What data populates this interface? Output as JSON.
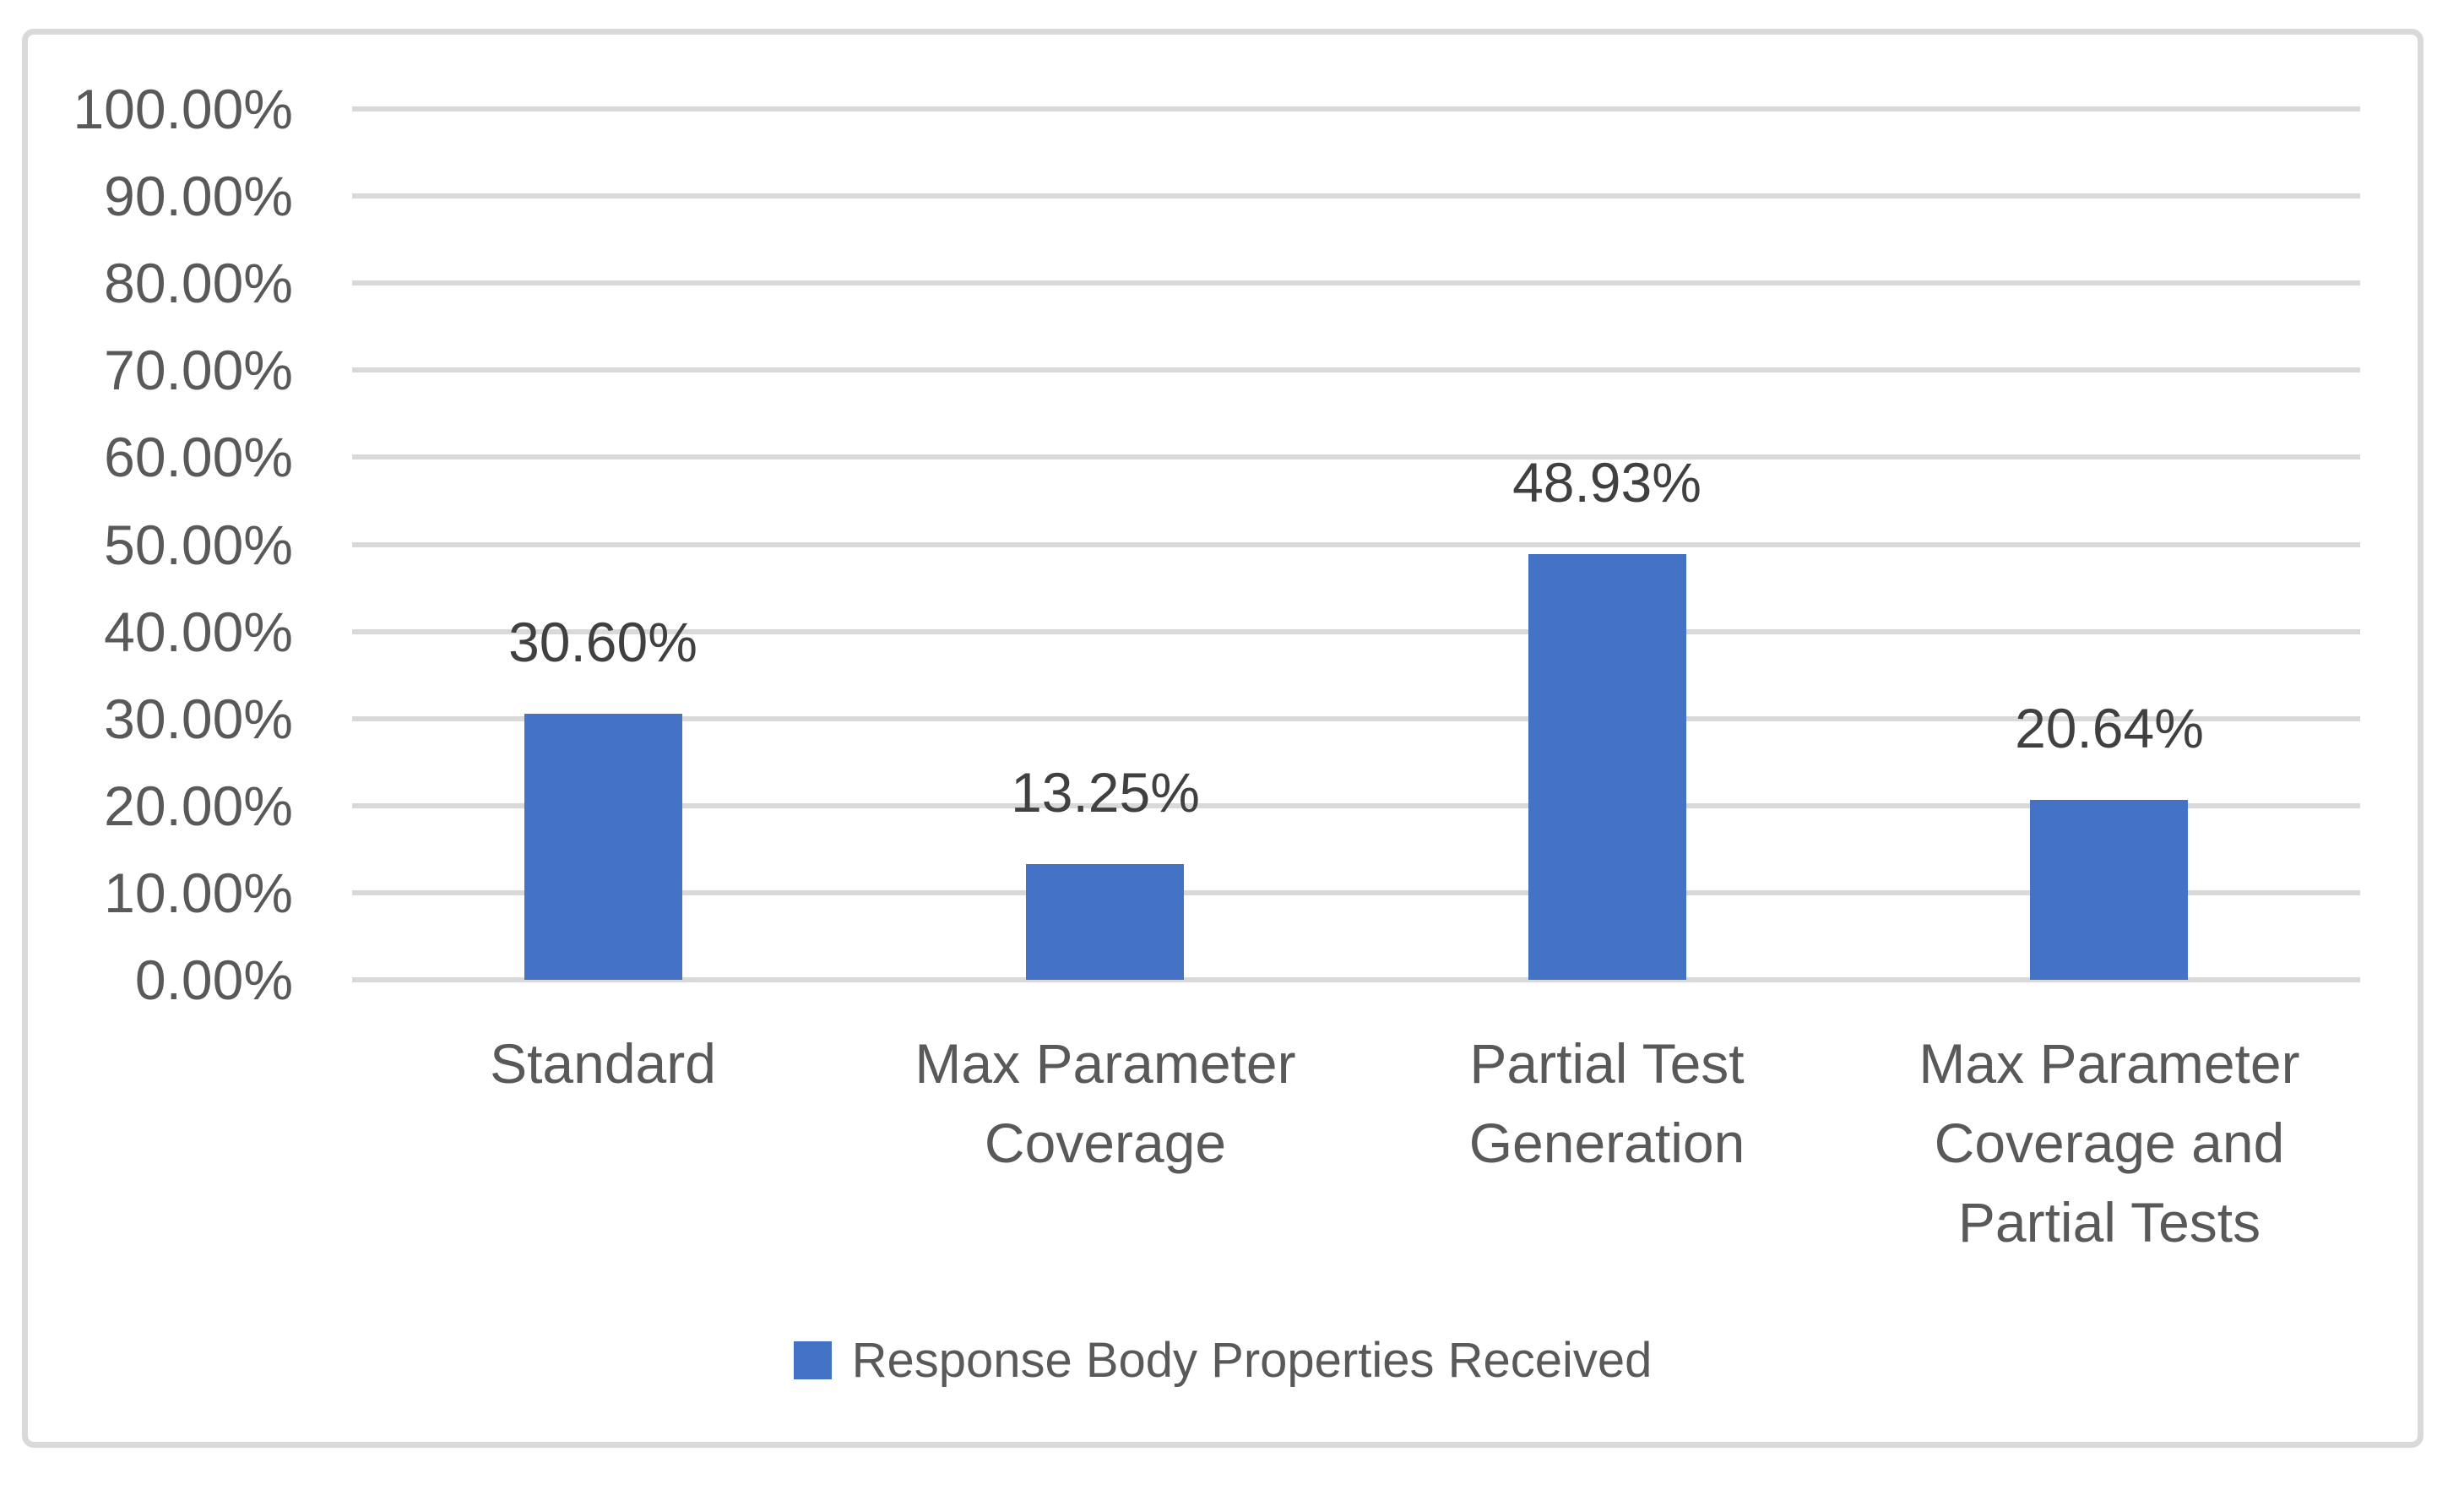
{
  "chart_data": {
    "type": "bar",
    "title": "",
    "xlabel": "",
    "ylabel": "",
    "categories": [
      "Standard",
      "Max Parameter Coverage",
      "Partial Test Generation",
      "Max Parameter Coverage and Partial Tests"
    ],
    "categories_lines": [
      [
        "Standard"
      ],
      [
        "Max Parameter",
        "Coverage"
      ],
      [
        "Partial Test",
        "Generation"
      ],
      [
        "Max Parameter",
        "Coverage and",
        "Partial Tests"
      ]
    ],
    "values": [
      30.6,
      13.25,
      48.93,
      20.64
    ],
    "data_labels": [
      "30.60%",
      "13.25%",
      "48.93%",
      "20.64%"
    ],
    "series": [
      {
        "name": "Response Body Properties Received",
        "values": [
          30.6,
          13.25,
          48.93,
          20.64
        ]
      }
    ],
    "ylim": [
      0,
      100
    ],
    "ytick_labels": [
      "100.00%",
      "90.00%",
      "80.00%",
      "70.00%",
      "60.00%",
      "50.00%",
      "40.00%",
      "30.00%",
      "20.00%",
      "10.00%",
      "0.00%"
    ],
    "grid": true,
    "legend_position": "bottom",
    "legend_label": "Response Body Properties Received",
    "colors": {
      "bar": "#4472C4",
      "gridline": "#D9D9D9",
      "border": "#D9D9D9",
      "axis_text": "#595959",
      "data_label_text": "#404040",
      "legend_text": "#595959",
      "background": "#FFFFFF"
    }
  }
}
